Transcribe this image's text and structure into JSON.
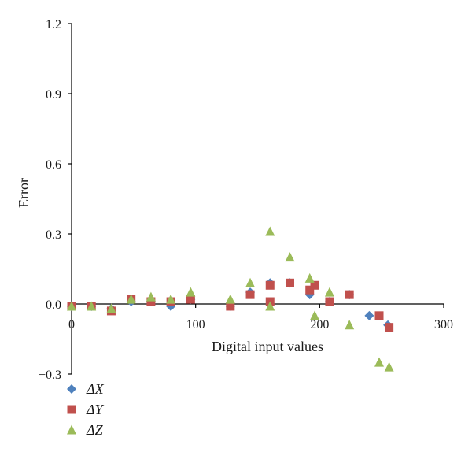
{
  "chart_data": {
    "type": "scatter",
    "title": "",
    "xlabel": "Digital input values",
    "ylabel": "Error",
    "xlim": [
      0,
      300
    ],
    "ylim": [
      -0.3,
      1.2
    ],
    "x_ticks": [
      "0",
      "100",
      "200",
      "300"
    ],
    "y_ticks": [
      "−0.3",
      "0.0",
      "0.3",
      "0.6",
      "0.9",
      "1.2"
    ],
    "x_tick_values": [
      0,
      100,
      200,
      300
    ],
    "y_tick_values": [
      -0.3,
      0.0,
      0.3,
      0.6,
      0.9,
      1.2
    ],
    "grid": false,
    "legend_position": "bottom-left",
    "series": [
      {
        "name": "ΔX",
        "marker": "diamond",
        "color": "#4f81bd",
        "points": [
          [
            0,
            -0.01
          ],
          [
            16,
            -0.01
          ],
          [
            32,
            -0.02
          ],
          [
            48,
            0.01
          ],
          [
            64,
            0.01
          ],
          [
            80,
            -0.01
          ],
          [
            96,
            0.02
          ],
          [
            128,
            -0.01
          ],
          [
            144,
            0.05
          ],
          [
            160,
            0.09
          ],
          [
            176,
            0.09
          ],
          [
            192,
            0.04
          ],
          [
            208,
            0.01
          ],
          [
            224,
            0.04
          ],
          [
            240,
            -0.05
          ],
          [
            255,
            -0.09
          ]
        ]
      },
      {
        "name": "ΔY",
        "marker": "square",
        "color": "#c0504d",
        "points": [
          [
            0,
            -0.01
          ],
          [
            16,
            -0.01
          ],
          [
            32,
            -0.03
          ],
          [
            48,
            0.02
          ],
          [
            64,
            0.01
          ],
          [
            80,
            0.01
          ],
          [
            96,
            0.02
          ],
          [
            128,
            -0.01
          ],
          [
            144,
            0.04
          ],
          [
            160,
            0.08
          ],
          [
            160,
            0.01
          ],
          [
            176,
            0.09
          ],
          [
            192,
            0.06
          ],
          [
            196,
            0.08
          ],
          [
            208,
            0.01
          ],
          [
            224,
            0.04
          ],
          [
            248,
            -0.05
          ],
          [
            256,
            -0.1
          ]
        ]
      },
      {
        "name": "ΔZ",
        "marker": "triangle",
        "color": "#9bbb59",
        "points": [
          [
            0,
            -0.01
          ],
          [
            16,
            -0.01
          ],
          [
            32,
            -0.02
          ],
          [
            48,
            0.02
          ],
          [
            64,
            0.03
          ],
          [
            80,
            0.02
          ],
          [
            96,
            0.05
          ],
          [
            128,
            0.02
          ],
          [
            144,
            0.09
          ],
          [
            160,
            0.31
          ],
          [
            160,
            -0.01
          ],
          [
            176,
            0.2
          ],
          [
            192,
            0.11
          ],
          [
            196,
            -0.05
          ],
          [
            208,
            0.05
          ],
          [
            224,
            -0.09
          ],
          [
            248,
            -0.25
          ],
          [
            256,
            -0.27
          ]
        ]
      }
    ]
  }
}
